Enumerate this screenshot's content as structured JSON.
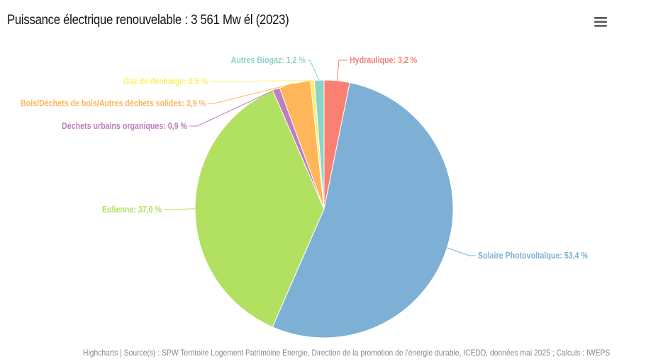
{
  "chart_data": {
    "type": "pie",
    "title": "Puissance électrique renouvelable : 3 561 Mw él (2023)",
    "unit": "%",
    "series": [
      {
        "name": "Hydraulique",
        "value": 3.2,
        "label": "Hydraulique: 3,2 %",
        "color": "#fa8072"
      },
      {
        "name": "Solaire Photovoltaïque",
        "value": 53.4,
        "label": "Solaire Photovoltaïque: 53,4 %",
        "color": "#7eb0d5"
      },
      {
        "name": "Eolienne",
        "value": 37.0,
        "label": "Eolienne: 37,0 %",
        "color": "#b2e061"
      },
      {
        "name": "Déchets urbains organiques",
        "value": 0.9,
        "label": "Déchets urbains organiques: 0,9 %",
        "color": "#bd7ebe"
      },
      {
        "name": "Bois/Déchets de bois/Autres déchets solides",
        "value": 3.9,
        "label": "Bois/Déchets de bois/Autres déchets solides: 3,9 %",
        "color": "#ffb55a"
      },
      {
        "name": "Gaz de décharge",
        "value": 0.5,
        "label": "Gaz de décharge: 0,5 %",
        "color": "#ffee65"
      },
      {
        "name": "Autres Biogaz",
        "value": 1.2,
        "label": "Autres Biogaz: 1,2 %",
        "color": "#8bd3c7"
      }
    ]
  },
  "menu": {
    "icon": "hamburger-menu-icon"
  },
  "credits": "Highcharts | Source(s) : SPW Territoire Logement Patrimoine Energie, Direction de la promotion de l'énergie durable, ICEDD, données mai 2025 ; Calculs : IWEPS"
}
